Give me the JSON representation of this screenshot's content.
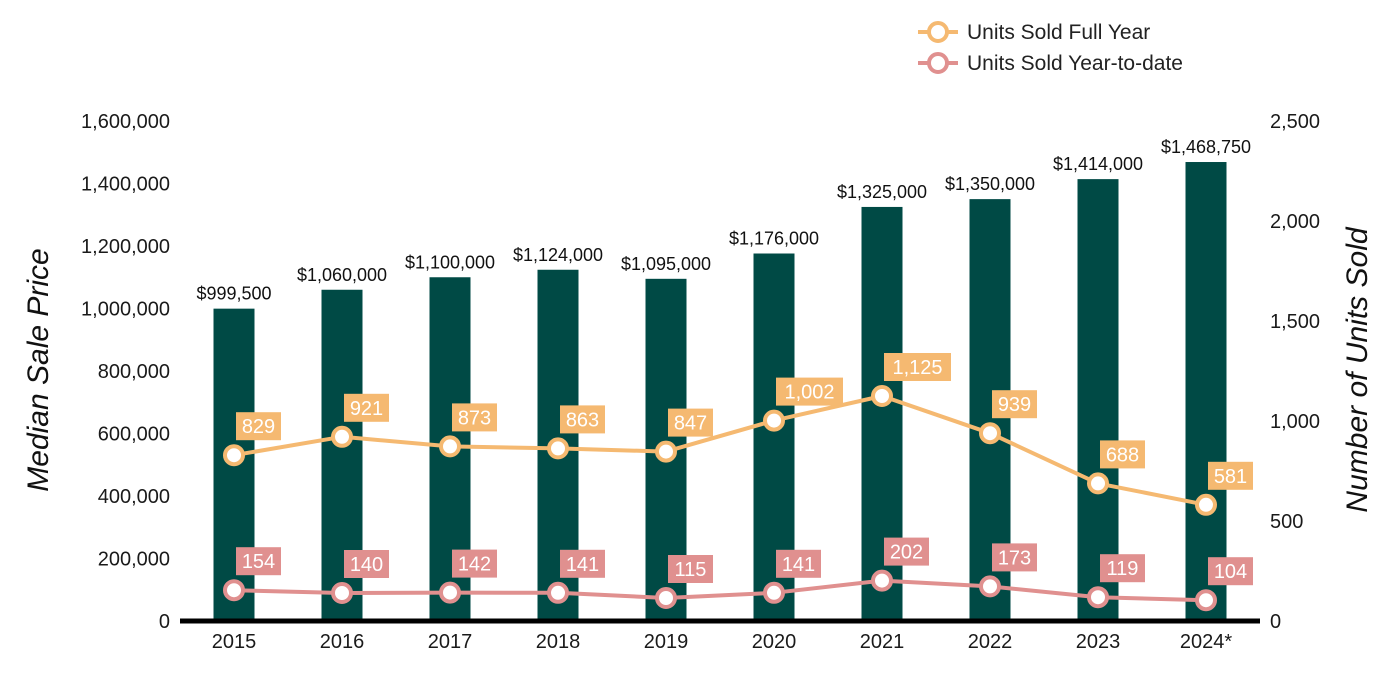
{
  "chart_data": {
    "type": "bar",
    "categories": [
      "2015",
      "2016",
      "2017",
      "2018",
      "2019",
      "2020",
      "2021",
      "2022",
      "2023",
      "2024*"
    ],
    "bars": {
      "values": [
        999500,
        1060000,
        1100000,
        1124000,
        1095000,
        1176000,
        1325000,
        1350000,
        1414000,
        1468750
      ],
      "labels": [
        "$999,500",
        "$1,060,000",
        "$1,100,000",
        "$1,124,000",
        "$1,095,000",
        "$1,176,000",
        "$1,325,000",
        "$1,350,000",
        "$1,414,000",
        "$1,468,750"
      ],
      "color": "#004a45"
    },
    "series": [
      {
        "name": "Units Sold Full Year",
        "type": "line",
        "axis": "right",
        "values": [
          829,
          921,
          873,
          863,
          847,
          1002,
          1125,
          939,
          688,
          581
        ],
        "labels": [
          "829",
          "921",
          "873",
          "863",
          "847",
          "1,002",
          "1,125",
          "939",
          "688",
          "581"
        ],
        "color": "#f5b971"
      },
      {
        "name": "Units Sold Year-to-date",
        "type": "line",
        "axis": "right",
        "values": [
          154,
          140,
          142,
          141,
          115,
          141,
          202,
          173,
          119,
          104
        ],
        "labels": [
          "154",
          "140",
          "142",
          "141",
          "115",
          "141",
          "202",
          "173",
          "119",
          "104"
        ],
        "color": "#e0908f"
      }
    ],
    "ylabel": "Median Sale Price",
    "y2label": "Number of Units Sold",
    "ylim": [
      0,
      1600000
    ],
    "y2lim": [
      0,
      2500
    ],
    "yticks": [
      "0",
      "200,000",
      "400,000",
      "600,000",
      "800,000",
      "1,000,000",
      "1,200,000",
      "1,400,000",
      "1,600,000"
    ],
    "y2ticks": [
      "0",
      "500",
      "1,000",
      "1,500",
      "2,000",
      "2,500"
    ],
    "grid": false,
    "legend_position": "top-right"
  }
}
